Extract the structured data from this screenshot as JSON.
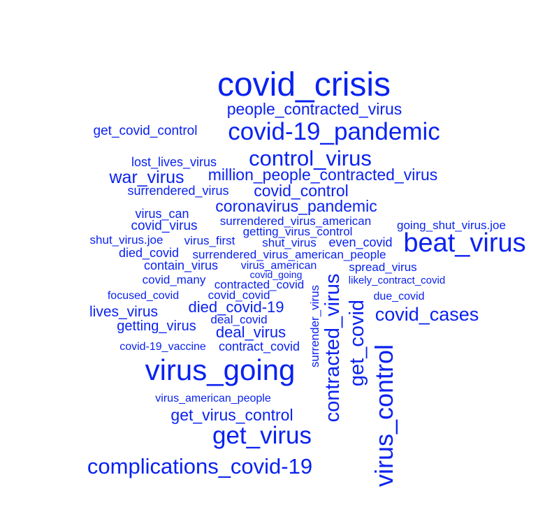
{
  "color": "#0A22F0",
  "words": [
    {
      "text": "covid_crisis",
      "weight": 48
    },
    {
      "text": "people_contracted_virus",
      "weight": 23
    },
    {
      "text": "get_covid_control",
      "weight": 19
    },
    {
      "text": "covid-19_pandemic",
      "weight": 35
    },
    {
      "text": "lost_lives_virus",
      "weight": 18
    },
    {
      "text": "control_virus",
      "weight": 31
    },
    {
      "text": "war_virus",
      "weight": 25
    },
    {
      "text": "million_people_contracted_virus",
      "weight": 23
    },
    {
      "text": "surrendered_virus",
      "weight": 18
    },
    {
      "text": "covid_control",
      "weight": 23
    },
    {
      "text": "coronavirus_pandemic",
      "weight": 23
    },
    {
      "text": "virus_can",
      "weight": 18
    },
    {
      "text": "covid_virus",
      "weight": 19
    },
    {
      "text": "surrendered_virus_american",
      "weight": 17
    },
    {
      "text": "going_shut_virus.joe",
      "weight": 17
    },
    {
      "text": "getting_virus_control",
      "weight": 17
    },
    {
      "text": "shut_virus.joe",
      "weight": 17
    },
    {
      "text": "virus_first",
      "weight": 17
    },
    {
      "text": "shut_virus",
      "weight": 17
    },
    {
      "text": "even_covid",
      "weight": 18
    },
    {
      "text": "beat_virus",
      "weight": 38
    },
    {
      "text": "died_covid",
      "weight": 18
    },
    {
      "text": "surrendered_virus_american_people",
      "weight": 17
    },
    {
      "text": "contain_virus",
      "weight": 18
    },
    {
      "text": "virus_american",
      "weight": 16
    },
    {
      "text": "spread_virus",
      "weight": 17
    },
    {
      "text": "covid_going",
      "weight": 14
    },
    {
      "text": "covid_many",
      "weight": 17
    },
    {
      "text": "contracted_covid",
      "weight": 17
    },
    {
      "text": "likely_contract_covid",
      "weight": 15
    },
    {
      "text": "focused_covid",
      "weight": 16
    },
    {
      "text": "covid_covid",
      "weight": 17
    },
    {
      "text": "due_covid",
      "weight": 16
    },
    {
      "text": "died_covid-19",
      "weight": 22
    },
    {
      "text": "lives_virus",
      "weight": 21
    },
    {
      "text": "deal_covid",
      "weight": 17
    },
    {
      "text": "getting_virus",
      "weight": 20
    },
    {
      "text": "deal_virus",
      "weight": 22
    },
    {
      "text": "covid_cases",
      "weight": 27
    },
    {
      "text": "covid-19_vaccine",
      "weight": 16
    },
    {
      "text": "contract_covid",
      "weight": 18
    },
    {
      "text": "virus_going",
      "weight": 42
    },
    {
      "text": "surrender_virus",
      "weight": 17
    },
    {
      "text": "contracted_virus",
      "weight": 29
    },
    {
      "text": "get_covid",
      "weight": 29
    },
    {
      "text": "virus_control",
      "weight": 36
    },
    {
      "text": "virus_american_people",
      "weight": 16
    },
    {
      "text": "get_virus_control",
      "weight": 23
    },
    {
      "text": "get_virus",
      "weight": 35
    },
    {
      "text": "complications_covid-19",
      "weight": 31
    }
  ]
}
